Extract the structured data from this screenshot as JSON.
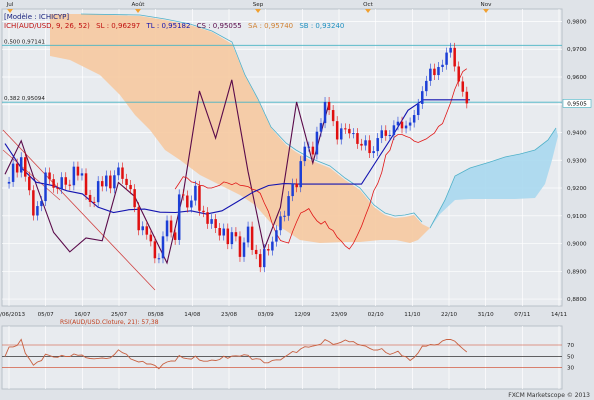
{
  "colors": {
    "bg": "#dfe3e8",
    "plot_bg": "#e8ebef",
    "grid": "#ffffff",
    "up": "#1c3fd6",
    "down": "#e01010",
    "tenkan": "#e01818",
    "kijun": "#1414b0",
    "chikou": "#5a0a4a",
    "cloud_bear": "#f6c9a0",
    "cloud_bull": "#a8d8ee",
    "fib": "#45b3c4",
    "rsi": "#c86040",
    "rsi_level": "#d04020",
    "trendline": "#d04040"
  },
  "top_axis": [
    "Jul",
    "Août",
    "Sep",
    "Oct",
    "Nov"
  ],
  "legend": {
    "model": "[Modèle : ICHICYP]",
    "ich": "ICH(AUD/USD, 9, 26, 52)",
    "sl": "SL : 0,96297",
    "tl": "TL : 0,95182",
    "cs": "CS : 0,95055",
    "sa": "SA : 0,95740",
    "sb": "SB : 0,93240"
  },
  "fib": [
    {
      "label": "0,500  0,97141",
      "value": 0.97141
    },
    {
      "label": "0,382  0,95094",
      "value": 0.95094
    }
  ],
  "last_price": {
    "label": "0,9505",
    "value": 0.9505
  },
  "rsi": {
    "title": "RSI(AUD/USD.Cloture, 21): 57,38",
    "levels": [
      70,
      50,
      30
    ],
    "level_labels": [
      "70",
      "50",
      "30"
    ],
    "value": 57.38
  },
  "copyright": "FXCM Marketscope © 2013",
  "chart_data": {
    "type": "candlestick",
    "title": "",
    "y_ticks": [
      "0,9800",
      "0,9700",
      "0,9600",
      "0,9500",
      "0,9400",
      "0,9300",
      "0,9200",
      "0,9100",
      "0,9000",
      "0,8900",
      "0,8800"
    ],
    "y_range": [
      0.8775,
      0.9845
    ],
    "x_ticks": [
      "24/06/2013",
      "05/07",
      "16/07",
      "25/07",
      "05/08",
      "14/08",
      "23/08",
      "03/09",
      "12/09",
      "23/09",
      "02/10",
      "11/10",
      "22/10",
      "31/10",
      "07/11",
      "14/11"
    ],
    "bar_count": 138,
    "closes": [
      0.9216,
      0.9222,
      0.9288,
      0.9256,
      0.9311,
      0.9241,
      0.9192,
      0.9101,
      0.9135,
      0.9153,
      0.9256,
      0.9232,
      0.9201,
      0.9197,
      0.9239,
      0.9212,
      0.921,
      0.9277,
      0.9245,
      0.9253,
      0.9175,
      0.915,
      0.9149,
      0.9225,
      0.9206,
      0.9245,
      0.9199,
      0.9246,
      0.9274,
      0.9233,
      0.9211,
      0.9196,
      0.9131,
      0.9048,
      0.9062,
      0.9032,
      0.9008,
      0.8947,
      0.8947,
      0.9026,
      0.9083,
      0.904,
      0.9013,
      0.9177,
      0.9173,
      0.913,
      0.9155,
      0.9208,
      0.9118,
      0.9113,
      0.9071,
      0.9088,
      0.9056,
      0.9029,
      0.9054,
      0.8998,
      0.9041,
      0.9026,
      0.8952,
      0.9004,
      0.9061,
      0.8977,
      0.8962,
      0.8915,
      0.898,
      0.8975,
      0.9007,
      0.9048,
      0.9098,
      0.91,
      0.9171,
      0.9216,
      0.9203,
      0.9297,
      0.9349,
      0.9349,
      0.9321,
      0.9403,
      0.9434,
      0.951,
      0.9481,
      0.9441,
      0.9375,
      0.9415,
      0.9413,
      0.9397,
      0.9398,
      0.9359,
      0.9353,
      0.9372,
      0.9326,
      0.9333,
      0.938,
      0.9408,
      0.9388,
      0.9391,
      0.9426,
      0.9439,
      0.9415,
      0.9425,
      0.9436,
      0.9463,
      0.9503,
      0.9549,
      0.9586,
      0.963,
      0.9607,
      0.9636,
      0.9644,
      0.9688,
      0.9705,
      0.9638,
      0.9584,
      0.9547,
      0.9505
    ],
    "tenkan": [
      0.9196,
      0.9218,
      0.9241,
      0.9236,
      0.9222,
      0.9219,
      0.921,
      0.9208,
      0.92,
      0.92,
      0.9205,
      0.921,
      0.9222,
      0.9218,
      0.9212,
      0.9219,
      0.921,
      0.9208,
      0.9205,
      0.9196,
      0.9192,
      0.9181,
      0.9146,
      0.9116,
      0.907,
      0.9035,
      0.9011,
      0.9006,
      0.9002,
      0.9043,
      0.9079,
      0.911,
      0.9117,
      0.9126,
      0.9101,
      0.9082,
      0.907,
      0.908,
      0.9055,
      0.9047,
      0.9023,
      0.9009,
      0.8991,
      0.898,
      0.9001,
      0.903,
      0.9062,
      0.9101,
      0.9139,
      0.9189,
      0.9216,
      0.9257,
      0.9319,
      0.9336,
      0.9382,
      0.9393,
      0.9393,
      0.9386,
      0.9381,
      0.9369,
      0.9364,
      0.9371,
      0.9377,
      0.9388,
      0.9398,
      0.9422,
      0.9432,
      0.947,
      0.9507,
      0.9555,
      0.9588,
      0.962,
      0.963
    ],
    "kijun": [
      0.936,
      0.9276,
      0.9221,
      0.921,
      0.919,
      0.9179,
      0.9131,
      0.9112,
      0.9122,
      0.9124,
      0.9113,
      0.9112,
      0.9118,
      0.9106,
      0.9118,
      0.9151,
      0.9185,
      0.9209,
      0.9216,
      0.9214,
      0.9214,
      0.9214,
      0.9214,
      0.9214,
      0.9301,
      0.9387,
      0.948,
      0.9518,
      0.9518,
      0.9518,
      0.9518
    ],
    "chikou": [
      0.925,
      0.937,
      0.92,
      0.904,
      0.897,
      0.902,
      0.901,
      0.922,
      0.917,
      0.905,
      0.893,
      0.918,
      0.955,
      0.938,
      0.959,
      0.926,
      0.898,
      0.913,
      0.951,
      0.929,
      0.9505
    ]
  }
}
